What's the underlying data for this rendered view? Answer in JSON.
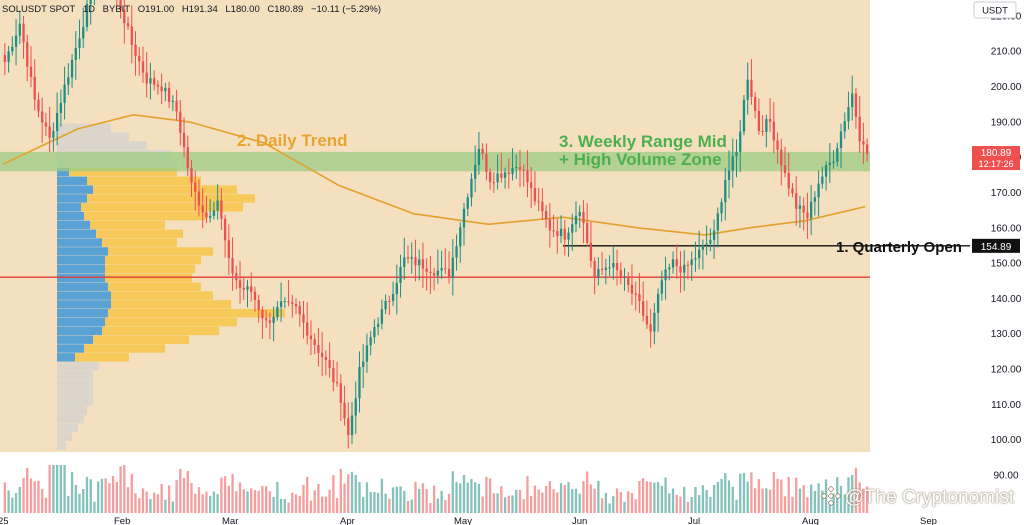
{
  "header": {
    "symbol": "SOLUSDT SPOT",
    "timeframe": "1D",
    "exchange": "BYBIT",
    "open": "O191.00",
    "high": "H191.34",
    "low": "L180.00",
    "close": "C180.89",
    "change": "−10.11 (−5.29%)"
  },
  "currency_label": "USDT",
  "watermark": "@The Cryptonomist",
  "colors": {
    "background": "#f4dfbe",
    "up": "#1f8f84",
    "down": "#ee4f4f",
    "ma": "#e3a22b",
    "quarterly_line": "#111111",
    "support_line": "#e53935",
    "zone": "#9ccc84",
    "profile_blue": "#4a9bd6",
    "profile_yellow": "#f7c64a",
    "annotation_daily": "#e8a530",
    "annotation_weekly": "#4caf50"
  },
  "chart_data": {
    "type": "candlestick",
    "title": "SOLUSDT SPOT · 1D · BYBIT",
    "ylabel": "USDT",
    "ylim": [
      85,
      230
    ],
    "grid": false,
    "y_ticks": [
      "90.00",
      "100.00",
      "110.00",
      "120.00",
      "130.00",
      "140.00",
      "150.00",
      "160.00",
      "170.00",
      "180.00",
      "190.00",
      "200.00",
      "210.00",
      "220.00"
    ],
    "x_ticks": [
      "25",
      "Feb",
      "Mar",
      "Apr",
      "May",
      "Jun",
      "Jul",
      "Aug",
      "Sep"
    ],
    "last_price": "180.89",
    "countdown": "12:17:26",
    "quarterly_open_value": "154.89",
    "support_level": 146,
    "zone": [
      176,
      181.5
    ],
    "annotations": [
      "2. Daily Trend",
      "3. Weekly Range Mid",
      "+ High Volume Zone",
      "1. Quarterly Open"
    ],
    "close_anchors": [
      [
        0,
        207
      ],
      [
        4,
        218
      ],
      [
        8,
        196
      ],
      [
        12,
        185
      ],
      [
        16,
        200
      ],
      [
        22,
        222
      ],
      [
        26,
        235
      ],
      [
        30,
        226
      ],
      [
        34,
        212
      ],
      [
        38,
        202
      ],
      [
        42,
        200
      ],
      [
        46,
        193
      ],
      [
        50,
        172
      ],
      [
        54,
        163
      ],
      [
        57,
        168
      ],
      [
        60,
        150
      ],
      [
        63,
        143
      ],
      [
        66,
        142
      ],
      [
        70,
        133
      ],
      [
        74,
        138
      ],
      [
        78,
        137
      ],
      [
        82,
        129
      ],
      [
        86,
        122
      ],
      [
        90,
        112
      ],
      [
        92,
        101
      ],
      [
        95,
        119
      ],
      [
        99,
        132
      ],
      [
        103,
        140
      ],
      [
        107,
        151
      ],
      [
        111,
        150
      ],
      [
        115,
        148
      ],
      [
        119,
        147
      ],
      [
        124,
        170
      ],
      [
        127,
        183
      ],
      [
        130,
        174
      ],
      [
        134,
        176
      ],
      [
        138,
        178
      ],
      [
        142,
        168
      ],
      [
        146,
        160
      ],
      [
        150,
        158
      ],
      [
        154,
        166
      ],
      [
        158,
        146
      ],
      [
        162,
        150
      ],
      [
        166,
        145
      ],
      [
        170,
        138
      ],
      [
        173,
        130
      ],
      [
        176,
        145
      ],
      [
        179,
        150
      ],
      [
        182,
        148
      ],
      [
        186,
        153
      ],
      [
        190,
        158
      ],
      [
        193,
        174
      ],
      [
        196,
        181
      ],
      [
        199,
        203
      ],
      [
        202,
        188
      ],
      [
        205,
        190
      ],
      [
        209,
        175
      ],
      [
        212,
        166
      ],
      [
        215,
        163
      ],
      [
        218,
        173
      ],
      [
        222,
        180
      ],
      [
        225,
        191
      ],
      [
        227,
        198
      ],
      [
        229,
        186
      ],
      [
        231,
        184
      ]
    ],
    "moving_average": [
      [
        0,
        178
      ],
      [
        20,
        188
      ],
      [
        35,
        192
      ],
      [
        50,
        190
      ],
      [
        70,
        184
      ],
      [
        90,
        172
      ],
      [
        110,
        164
      ],
      [
        130,
        161
      ],
      [
        150,
        163
      ],
      [
        170,
        160
      ],
      [
        188,
        158
      ],
      [
        200,
        160
      ],
      [
        215,
        162
      ],
      [
        231,
        166
      ]
    ],
    "volume_profile": {
      "price_from": 97,
      "bin": 2.5,
      "blue": [
        0,
        0,
        0,
        0,
        0,
        0,
        0,
        0,
        0,
        0,
        6,
        9,
        12,
        15,
        16,
        17,
        18,
        18,
        17,
        16,
        16,
        16,
        17,
        15,
        13,
        11,
        9,
        8,
        10,
        12,
        10,
        4,
        0,
        0,
        0,
        0,
        0,
        0,
        0,
        0,
        0,
        0,
        0
      ],
      "total": [
        3,
        5,
        7,
        9,
        10,
        12,
        12,
        12,
        12,
        14,
        24,
        36,
        44,
        54,
        60,
        76,
        58,
        52,
        48,
        45,
        46,
        48,
        52,
        40,
        42,
        36,
        50,
        62,
        66,
        60,
        48,
        40,
        40,
        38,
        30,
        24,
        18,
        0,
        0,
        0,
        0,
        0,
        0
      ]
    }
  }
}
